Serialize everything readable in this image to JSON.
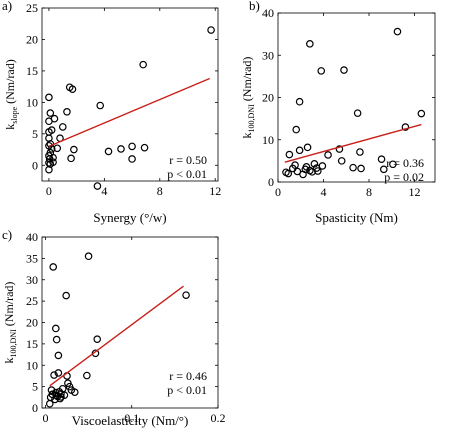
{
  "chart_data": [
    {
      "type": "scatter",
      "panel_label": "a)",
      "xlabel": "Synergy (°/w)",
      "ylabel": "k",
      "ylabel_sub": "slope",
      "ylabel_unit": " (Nm/rad)",
      "xlim": [
        -0.5,
        12.2
      ],
      "ylim": [
        -2.5,
        25
      ],
      "xticks": [
        0,
        4,
        8,
        12
      ],
      "xtick_labels": [
        "0",
        "4",
        "8",
        "12"
      ],
      "yticks": [
        0,
        5,
        10,
        15,
        20,
        25
      ],
      "ytick_labels": [
        "0",
        "5",
        "10",
        "15",
        "20",
        "25"
      ],
      "points": [
        {
          "x": 0.0,
          "y": -0.7
        },
        {
          "x": 0.0,
          "y": 0.4
        },
        {
          "x": 0.05,
          "y": 1.0
        },
        {
          "x": 0.1,
          "y": 0.2
        },
        {
          "x": 0.0,
          "y": 1.5
        },
        {
          "x": 0.1,
          "y": 2.0
        },
        {
          "x": 0.2,
          "y": 2.6
        },
        {
          "x": 0.0,
          "y": 3.1
        },
        {
          "x": 0.1,
          "y": 3.4
        },
        {
          "x": 0.3,
          "y": 0.5
        },
        {
          "x": 0.0,
          "y": 4.3
        },
        {
          "x": 0.0,
          "y": 5.3
        },
        {
          "x": 0.2,
          "y": 5.6
        },
        {
          "x": 0.0,
          "y": 7.0
        },
        {
          "x": 0.1,
          "y": 8.3
        },
        {
          "x": 0.0,
          "y": 10.8
        },
        {
          "x": 0.4,
          "y": 7.4
        },
        {
          "x": 0.3,
          "y": 1.2
        },
        {
          "x": 0.6,
          "y": 2.7
        },
        {
          "x": 0.8,
          "y": 4.3
        },
        {
          "x": 1.0,
          "y": 6.1
        },
        {
          "x": 1.3,
          "y": 8.5
        },
        {
          "x": 1.5,
          "y": 12.4
        },
        {
          "x": 1.7,
          "y": 12.1
        },
        {
          "x": 1.6,
          "y": 1.1
        },
        {
          "x": 1.8,
          "y": 2.5
        },
        {
          "x": 3.5,
          "y": -3.3
        },
        {
          "x": 3.7,
          "y": 9.5
        },
        {
          "x": 4.3,
          "y": 2.2
        },
        {
          "x": 5.2,
          "y": 2.6
        },
        {
          "x": 6.0,
          "y": 3.0
        },
        {
          "x": 6.0,
          "y": 1.0
        },
        {
          "x": 6.8,
          "y": 16.0
        },
        {
          "x": 6.9,
          "y": 2.8
        },
        {
          "x": 11.7,
          "y": 21.5
        }
      ],
      "fit": {
        "x": [
          0,
          11.6
        ],
        "y": [
          3.0,
          13.8
        ]
      },
      "annotations": [
        "r = 0.50",
        "p < 0.01"
      ]
    },
    {
      "type": "scatter",
      "panel_label": "b)",
      "xlabel": "Spasticity (Nm)",
      "ylabel": "k",
      "ylabel_sub": "100,DNI",
      "ylabel_unit": " (Nm/rad)",
      "xlim": [
        0,
        13.8
      ],
      "ylim": [
        0,
        40
      ],
      "xticks": [
        0,
        4,
        8,
        12
      ],
      "xtick_labels": [
        "0",
        "4",
        "8",
        "12"
      ],
      "yticks": [
        0,
        10,
        20,
        30,
        40
      ],
      "ytick_labels": [
        "0",
        "10",
        "20",
        "30",
        "40"
      ],
      "points": [
        {
          "x": 0.7,
          "y": 2.3
        },
        {
          "x": 0.9,
          "y": 2.0
        },
        {
          "x": 1.0,
          "y": 6.5
        },
        {
          "x": 1.3,
          "y": 3.2
        },
        {
          "x": 1.5,
          "y": 4.0
        },
        {
          "x": 1.6,
          "y": 12.4
        },
        {
          "x": 1.7,
          "y": 2.5
        },
        {
          "x": 1.9,
          "y": 19.0
        },
        {
          "x": 1.9,
          "y": 7.5
        },
        {
          "x": 2.2,
          "y": 1.8
        },
        {
          "x": 2.4,
          "y": 3.0
        },
        {
          "x": 2.5,
          "y": 3.6
        },
        {
          "x": 2.6,
          "y": 8.2
        },
        {
          "x": 2.8,
          "y": 32.7
        },
        {
          "x": 2.8,
          "y": 2.7
        },
        {
          "x": 3.0,
          "y": 2.4
        },
        {
          "x": 3.2,
          "y": 4.3
        },
        {
          "x": 3.4,
          "y": 3.3
        },
        {
          "x": 3.5,
          "y": 2.6
        },
        {
          "x": 3.8,
          "y": 26.3
        },
        {
          "x": 3.9,
          "y": 3.8
        },
        {
          "x": 4.4,
          "y": 6.4
        },
        {
          "x": 5.4,
          "y": 7.8
        },
        {
          "x": 5.8,
          "y": 26.5
        },
        {
          "x": 5.6,
          "y": 5.0
        },
        {
          "x": 6.6,
          "y": 3.4
        },
        {
          "x": 7.0,
          "y": 16.3
        },
        {
          "x": 7.2,
          "y": 7.1
        },
        {
          "x": 7.3,
          "y": 3.2
        },
        {
          "x": 9.1,
          "y": 5.4
        },
        {
          "x": 9.3,
          "y": 3.0
        },
        {
          "x": 10.1,
          "y": 4.2
        },
        {
          "x": 10.5,
          "y": 35.6
        },
        {
          "x": 11.2,
          "y": 13.0
        },
        {
          "x": 12.6,
          "y": 16.2
        }
      ],
      "fit": {
        "x": [
          0.6,
          12.6
        ],
        "y": [
          4.7,
          13.6
        ]
      },
      "annotations": [
        "r = 0.36",
        "p = 0.02"
      ]
    },
    {
      "type": "scatter",
      "panel_label": "c)",
      "xlabel": "Viscoelasticity (Nm/°)",
      "ylabel": "k",
      "ylabel_sub": "100,DNI",
      "ylabel_unit": " (Nm/rad)",
      "xlim": [
        -0.004,
        0.2
      ],
      "ylim": [
        0,
        40
      ],
      "xticks": [
        0,
        0.1,
        0.2
      ],
      "xtick_labels": [
        "0",
        "0.1",
        "0.2"
      ],
      "yticks": [
        0,
        5,
        10,
        15,
        20,
        25,
        30,
        35,
        40
      ],
      "ytick_labels": [
        "0",
        "5",
        "10",
        "15",
        "20",
        "25",
        "30",
        "35",
        "40"
      ],
      "points": [
        {
          "x": 0.005,
          "y": 1.0
        },
        {
          "x": 0.006,
          "y": 2.5
        },
        {
          "x": 0.007,
          "y": 4.2
        },
        {
          "x": 0.008,
          "y": 3.2
        },
        {
          "x": 0.009,
          "y": 33.0
        },
        {
          "x": 0.01,
          "y": 7.7
        },
        {
          "x": 0.011,
          "y": 2.0
        },
        {
          "x": 0.012,
          "y": 18.6
        },
        {
          "x": 0.012,
          "y": 3.6
        },
        {
          "x": 0.013,
          "y": 16.0
        },
        {
          "x": 0.013,
          "y": 3.0
        },
        {
          "x": 0.014,
          "y": 2.7
        },
        {
          "x": 0.015,
          "y": 8.2
        },
        {
          "x": 0.015,
          "y": 12.3
        },
        {
          "x": 0.016,
          "y": 3.8
        },
        {
          "x": 0.017,
          "y": 2.2
        },
        {
          "x": 0.018,
          "y": 3.3
        },
        {
          "x": 0.018,
          "y": 2.6
        },
        {
          "x": 0.02,
          "y": 4.5
        },
        {
          "x": 0.022,
          "y": 3.0
        },
        {
          "x": 0.024,
          "y": 26.3
        },
        {
          "x": 0.025,
          "y": 7.5
        },
        {
          "x": 0.026,
          "y": 5.8
        },
        {
          "x": 0.028,
          "y": 5.0
        },
        {
          "x": 0.03,
          "y": 4.2
        },
        {
          "x": 0.034,
          "y": 3.7
        },
        {
          "x": 0.048,
          "y": 7.6
        },
        {
          "x": 0.05,
          "y": 35.5
        },
        {
          "x": 0.058,
          "y": 12.8
        },
        {
          "x": 0.06,
          "y": 16.1
        },
        {
          "x": 0.163,
          "y": 26.4
        }
      ],
      "fit": {
        "x": [
          0.005,
          0.16
        ],
        "y": [
          5.2,
          28.5
        ]
      },
      "annotations": [
        "r = 0.46",
        "p < 0.01"
      ]
    }
  ]
}
